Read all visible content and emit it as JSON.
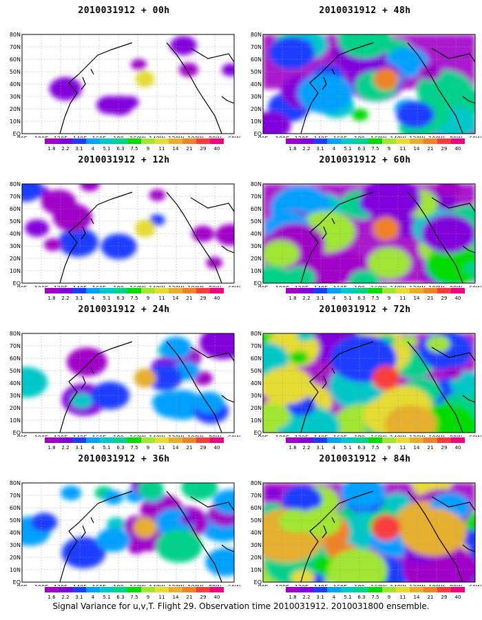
{
  "panels": [
    {
      "title": "2010031912 + 00h",
      "intensity": 0
    },
    {
      "title": "2010031912 + 12h",
      "intensity": 1
    },
    {
      "title": "2010031912 + 24h",
      "intensity": 2
    },
    {
      "title": "2010031912 + 36h",
      "intensity": 3
    },
    {
      "title": "2010031912 + 48h",
      "intensity": 4
    },
    {
      "title": "2010031912 + 60h",
      "intensity": 5
    },
    {
      "title": "2010031912 + 72h",
      "intensity": 6
    },
    {
      "title": "2010031912 + 84h",
      "intensity": 7
    }
  ],
  "x_ticks": [
    "80E",
    "100E",
    "120E",
    "140E",
    "160E",
    "180",
    "160W",
    "140W",
    "120W",
    "100W",
    "80W",
    "60W"
  ],
  "y_ticks": [
    "EQ",
    "10N",
    "20N",
    "30N",
    "40N",
    "50N",
    "60N",
    "70N",
    "80N"
  ],
  "colorbar": {
    "labels": [
      "1.8",
      "2.2",
      "3.1",
      "4",
      "5.1",
      "6.3",
      "7.5",
      "9",
      "11",
      "14",
      "21",
      "29",
      "40"
    ],
    "labels_alt": [
      "1.6",
      "2.2",
      "3.1",
      "4",
      "5.1",
      "6.3",
      "7.5",
      "9",
      "11",
      "14",
      "21",
      "29",
      "40"
    ],
    "colors": [
      "#a000c8",
      "#8200dc",
      "#1e3cff",
      "#00a0ff",
      "#00c8c8",
      "#00d28c",
      "#00dc00",
      "#a0e632",
      "#e6dc32",
      "#e6af2d",
      "#f08228",
      "#fa3c3c",
      "#f00082"
    ]
  },
  "footer": "Signal Variance for u,v,T. Flight 29. Observation time 2010031912. 2010031800 ensemble."
}
